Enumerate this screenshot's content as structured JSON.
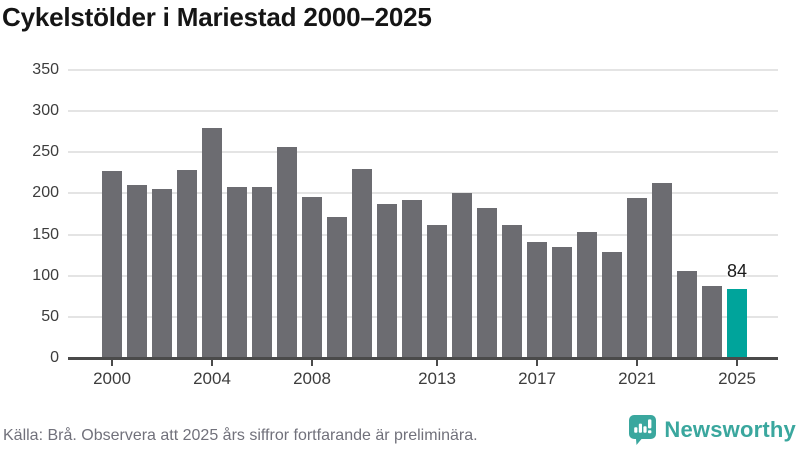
{
  "title": "Cykelstölder i Mariestad 2000–2025",
  "footer": {
    "source_note": "Källa: Brå. Observera att 2025 års siffror fortfarande är preliminära.",
    "brand": "Newsworthy"
  },
  "colors": {
    "bar": "#6c6c71",
    "bar_highlight": "#00a49b",
    "axis": "#4a4a4a",
    "grid": "#e4e4e4",
    "tick_label": "#3d3d3d",
    "title": "#151515",
    "footer_text": "#71717b",
    "brand_teal": "#3aa79e"
  },
  "chart_data": {
    "type": "bar",
    "title": "Cykelstölder i Mariestad 2000–2025",
    "xlabel": "",
    "ylabel": "",
    "categories": [
      2000,
      2001,
      2002,
      2003,
      2004,
      2005,
      2006,
      2007,
      2008,
      2009,
      2010,
      2011,
      2012,
      2013,
      2014,
      2015,
      2016,
      2017,
      2018,
      2019,
      2020,
      2021,
      2022,
      2023,
      2024,
      2025
    ],
    "values": [
      227,
      210,
      205,
      228,
      279,
      208,
      208,
      257,
      196,
      171,
      230,
      187,
      192,
      162,
      201,
      182,
      162,
      141,
      135,
      153,
      129,
      195,
      213,
      106,
      88,
      84
    ],
    "highlight_category": 2025,
    "highlight_value_label": "84",
    "x_tick_labels": [
      "2000",
      "2004",
      "2008",
      "2013",
      "2017",
      "2021",
      "2025"
    ],
    "x_tick_years": [
      2000,
      2004,
      2008,
      2013,
      2017,
      2021,
      2025
    ],
    "y_tick_labels": [
      "0",
      "50",
      "100",
      "150",
      "200",
      "250",
      "300",
      "350"
    ],
    "y_ticks": [
      0,
      50,
      100,
      150,
      200,
      250,
      300,
      350
    ],
    "ylim": [
      0,
      350
    ],
    "grid": true,
    "legend": "none"
  }
}
